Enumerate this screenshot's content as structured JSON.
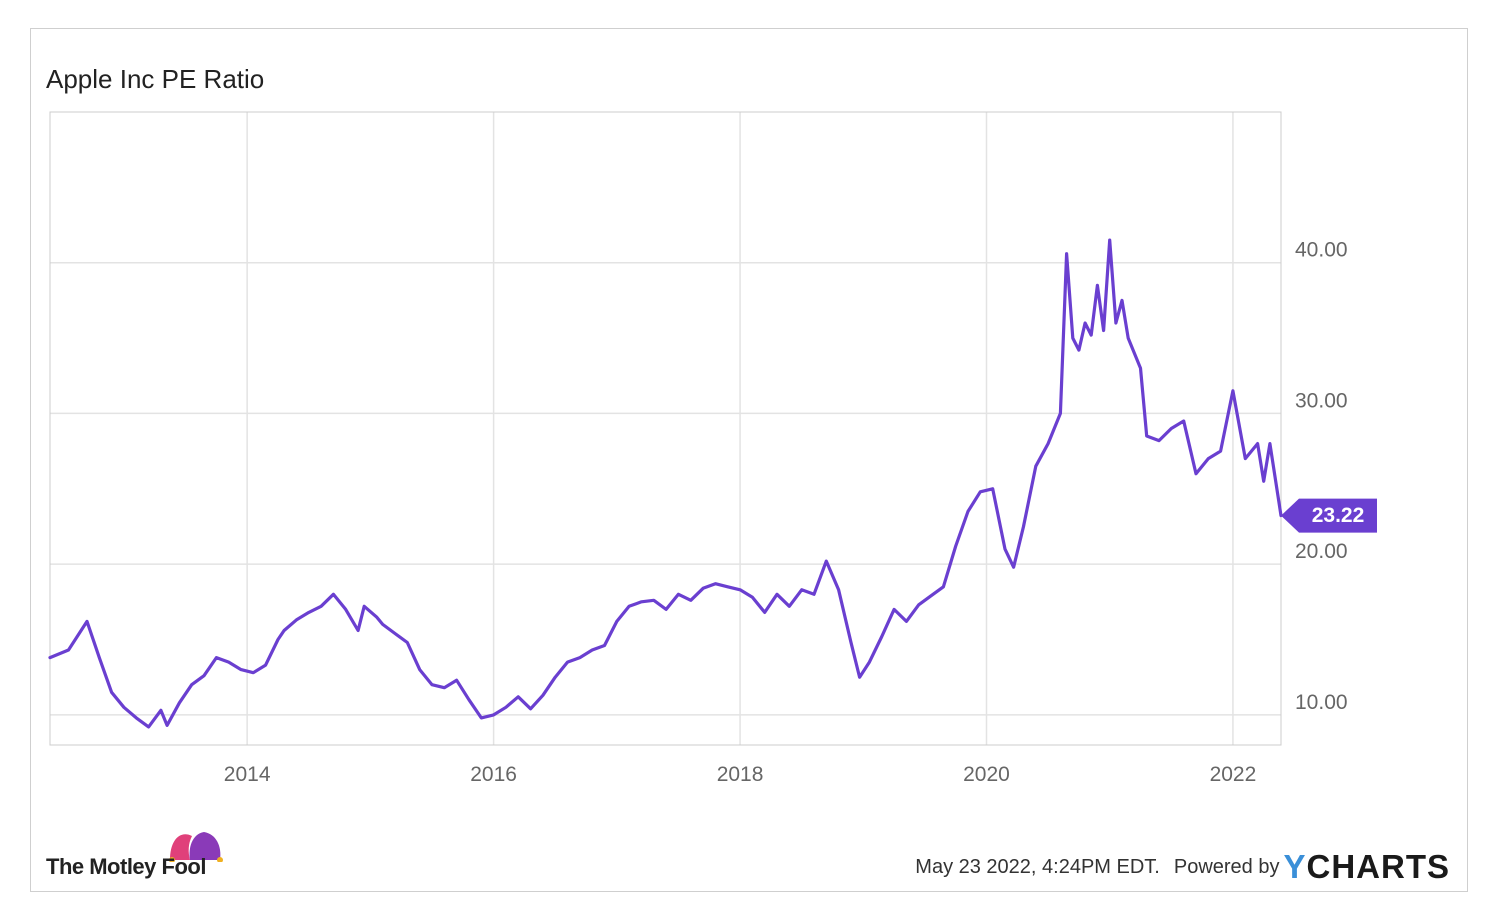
{
  "chart_title": "Apple Inc PE Ratio",
  "footer": {
    "logo_text": "The Motley Fool",
    "timestamp": "May 23 2022, 4:24PM EDT.",
    "powered_by": "Powered by",
    "brand_y": "Y",
    "brand_rest": "CHARTS"
  },
  "colors": {
    "line": "#6a3fd0",
    "badge": "#6a3fd0",
    "grid": "#e3e3e3",
    "axis": "#cccccc"
  },
  "chart_data": {
    "type": "line",
    "title": "Apple Inc PE Ratio",
    "xlabel": "",
    "ylabel": "",
    "x_ticks": [
      "2014",
      "2016",
      "2018",
      "2020",
      "2022"
    ],
    "y_ticks": [
      "10.00",
      "20.00",
      "30.00",
      "40.00"
    ],
    "xlim": [
      2012.4,
      2022.39
    ],
    "ylim": [
      8,
      50
    ],
    "grid": true,
    "last_value_label": "23.22",
    "series": [
      {
        "x": [
          2012.4,
          2012.55,
          2012.7,
          2012.8,
          2012.9,
          2013.0,
          2013.1,
          2013.2,
          2013.3,
          2013.35,
          2013.45,
          2013.55,
          2013.65,
          2013.75,
          2013.85,
          2013.95,
          2014.05,
          2014.15,
          2014.25,
          2014.3,
          2014.4,
          2014.5,
          2014.6,
          2014.7,
          2014.8,
          2014.9,
          2014.95,
          2015.05,
          2015.1,
          2015.2,
          2015.3,
          2015.4,
          2015.5,
          2015.6,
          2015.7,
          2015.8,
          2015.9,
          2016.0,
          2016.1,
          2016.2,
          2016.3,
          2016.4,
          2016.5,
          2016.6,
          2016.7,
          2016.8,
          2016.9,
          2017.0,
          2017.1,
          2017.2,
          2017.3,
          2017.4,
          2017.5,
          2017.6,
          2017.7,
          2017.8,
          2017.9,
          2018.0,
          2018.1,
          2018.2,
          2018.3,
          2018.4,
          2018.5,
          2018.6,
          2018.7,
          2018.8,
          2018.9,
          2018.97,
          2019.05,
          2019.15,
          2019.25,
          2019.35,
          2019.45,
          2019.55,
          2019.65,
          2019.75,
          2019.85,
          2019.95,
          2020.05,
          2020.15,
          2020.22,
          2020.3,
          2020.4,
          2020.5,
          2020.6,
          2020.65,
          2020.7,
          2020.75,
          2020.8,
          2020.85,
          2020.9,
          2020.95,
          2021.0,
          2021.05,
          2021.1,
          2021.15,
          2021.25,
          2021.3,
          2021.4,
          2021.5,
          2021.6,
          2021.7,
          2021.8,
          2021.9,
          2022.0,
          2022.1,
          2022.2,
          2022.25,
          2022.3,
          2022.39
        ],
        "values": [
          13.8,
          14.3,
          16.2,
          13.8,
          11.5,
          10.5,
          9.8,
          9.2,
          10.3,
          9.3,
          10.8,
          12.0,
          12.6,
          13.8,
          13.5,
          13.0,
          12.8,
          13.3,
          15.0,
          15.6,
          16.3,
          16.8,
          17.2,
          18.0,
          17.0,
          15.6,
          17.2,
          16.5,
          16.0,
          15.4,
          14.8,
          13.0,
          12.0,
          11.8,
          12.3,
          11.0,
          9.8,
          10.0,
          10.5,
          11.2,
          10.4,
          11.3,
          12.5,
          13.5,
          13.8,
          14.3,
          14.6,
          16.2,
          17.2,
          17.5,
          17.6,
          17.0,
          18.0,
          17.6,
          18.4,
          18.7,
          18.5,
          18.3,
          17.8,
          16.8,
          18.0,
          17.2,
          18.3,
          18.0,
          20.2,
          18.3,
          14.8,
          12.5,
          13.5,
          15.2,
          17.0,
          16.2,
          17.3,
          17.9,
          18.5,
          21.2,
          23.5,
          24.8,
          25.0,
          21.0,
          19.8,
          22.5,
          26.5,
          28.0,
          30.0,
          40.6,
          35.0,
          34.2,
          36.0,
          35.2,
          38.5,
          35.5,
          41.5,
          36.0,
          37.5,
          35.0,
          33.0,
          28.5,
          28.2,
          29.0,
          29.5,
          26.0,
          27.0,
          27.5,
          31.5,
          27.0,
          28.0,
          25.5,
          28.0,
          23.22
        ]
      }
    ]
  }
}
